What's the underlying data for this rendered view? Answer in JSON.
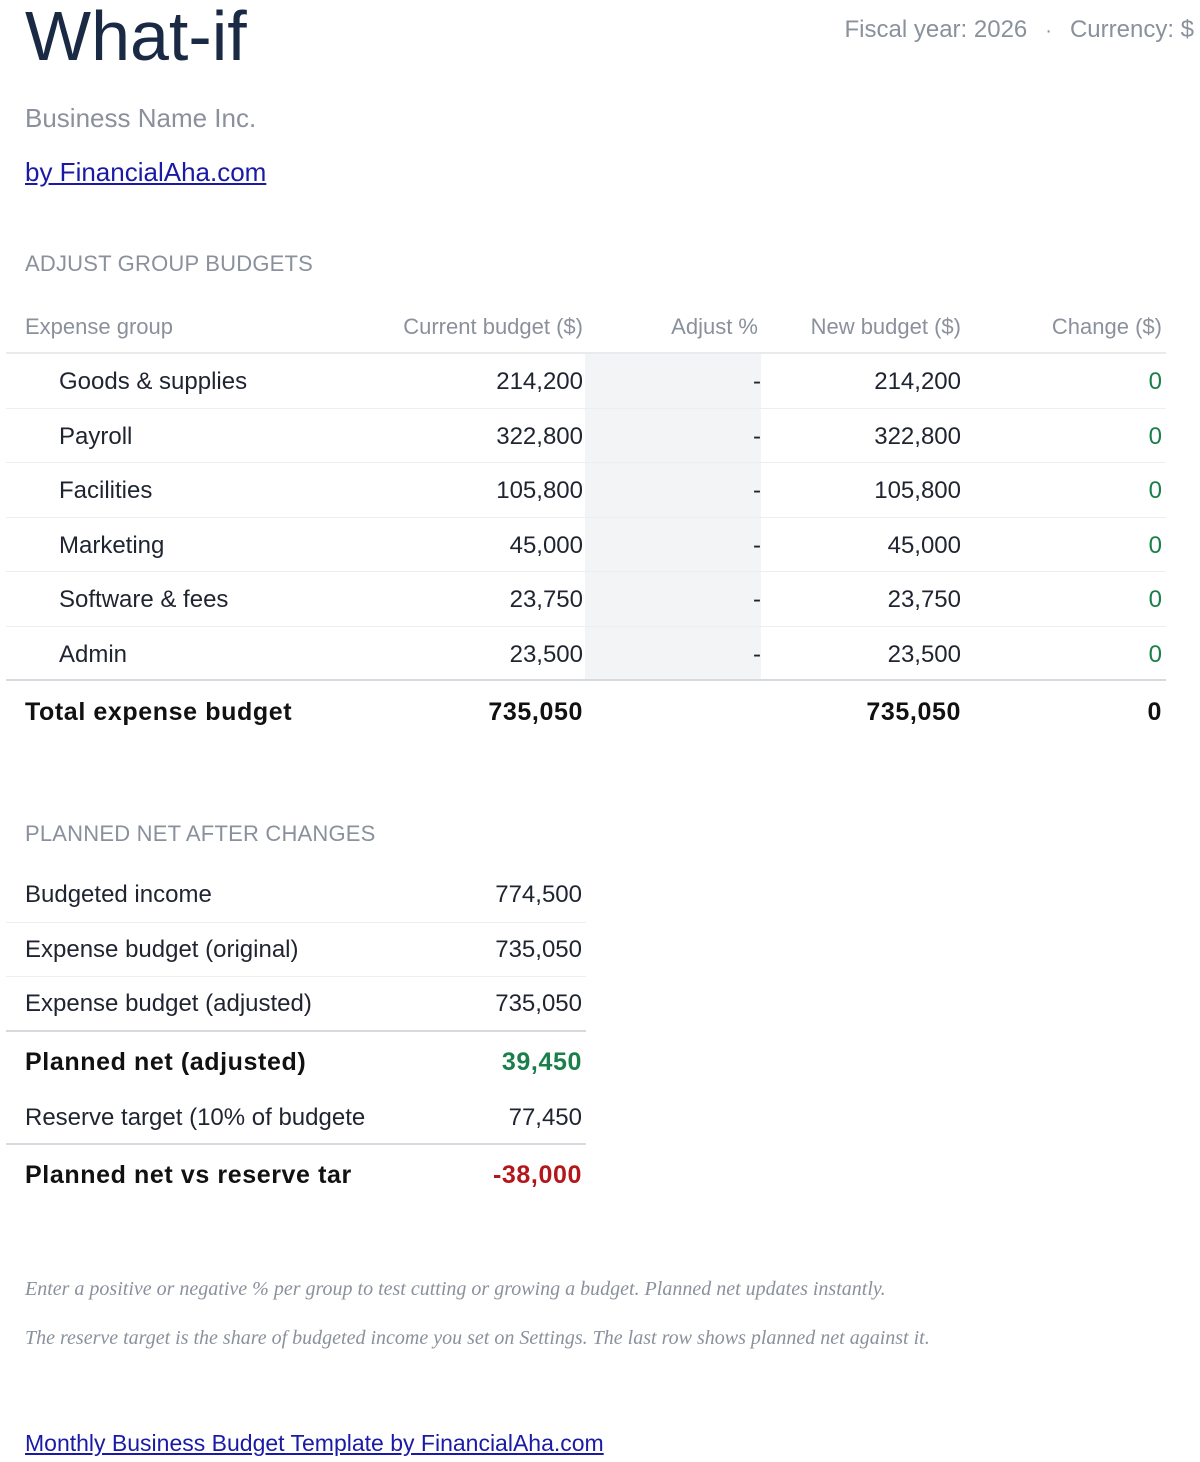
{
  "header": {
    "title": "What-if",
    "fiscal_year": "Fiscal year: 2026",
    "separator": "·",
    "currency": "Currency: $",
    "business_name": "Business Name Inc.",
    "by_link": "by FinancialAha.com"
  },
  "adjust_section": {
    "label": "ADJUST GROUP BUDGETS",
    "columns": {
      "group": "Expense group",
      "current": "Current budget ($)",
      "adjust": "Adjust %",
      "new": "New budget ($)",
      "change": "Change ($)"
    },
    "rows": [
      {
        "group": "Goods & supplies",
        "current": "214,200",
        "adjust": "-",
        "new": "214,200",
        "change": "0"
      },
      {
        "group": "Payroll",
        "current": "322,800",
        "adjust": "-",
        "new": "322,800",
        "change": "0"
      },
      {
        "group": "Facilities",
        "current": "105,800",
        "adjust": "-",
        "new": "105,800",
        "change": "0"
      },
      {
        "group": "Marketing",
        "current": "45,000",
        "adjust": "-",
        "new": "45,000",
        "change": "0"
      },
      {
        "group": "Software & fees",
        "current": "23,750",
        "adjust": "-",
        "new": "23,750",
        "change": "0"
      },
      {
        "group": "Admin",
        "current": "23,500",
        "adjust": "-",
        "new": "23,500",
        "change": "0"
      }
    ],
    "total": {
      "label": "Total expense budget",
      "current": "735,050",
      "new": "735,050",
      "change": "0"
    }
  },
  "net_section": {
    "label": "PLANNED NET AFTER CHANGES",
    "rows": [
      {
        "label": "Budgeted income",
        "value": "774,500"
      },
      {
        "label": "Expense budget (original)",
        "value": "735,050"
      },
      {
        "label": "Expense budget (adjusted)",
        "value": "735,050"
      },
      {
        "label": "Planned net (adjusted)",
        "value": "39,450"
      },
      {
        "label": "Reserve target (10% of budgete",
        "value": "77,450"
      },
      {
        "label": "Planned net vs reserve tar",
        "value": "-38,000"
      }
    ]
  },
  "notes": [
    "Enter a positive or negative % per group to test cutting or growing a budget. Planned net updates instantly.",
    "The reserve target is the share of budgeted income you set on Settings. The last row shows planned net against it."
  ],
  "footer": {
    "link": "Monthly Business Budget Template by FinancialAha.com"
  },
  "colors": {
    "positive": "#1a7f4b",
    "negative": "#b3161b",
    "muted": "#8a919c",
    "title": "#1b2a44",
    "link": "#1a1aa6"
  }
}
